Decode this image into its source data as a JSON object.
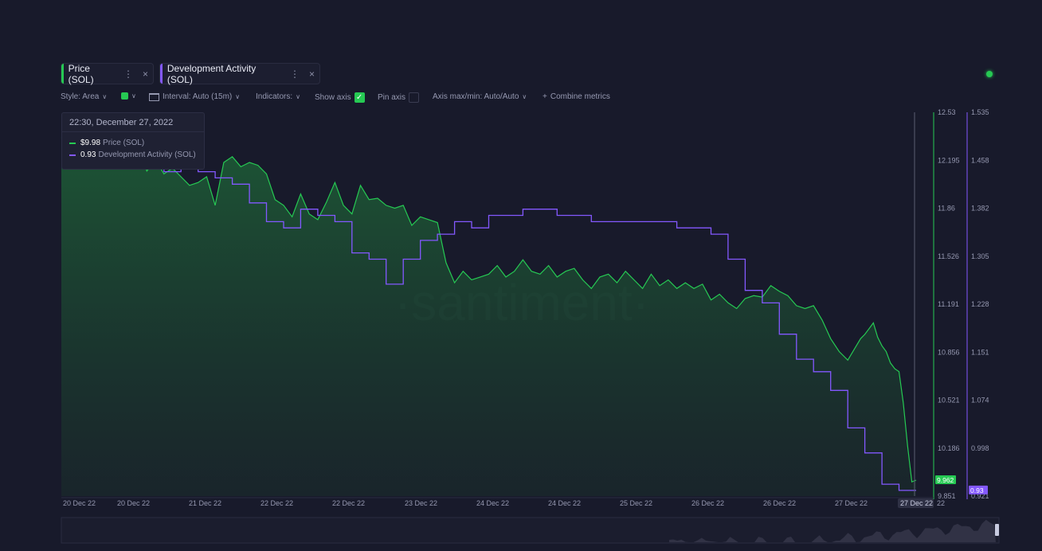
{
  "tabs": [
    {
      "label": "Price (SOL)",
      "color": "#26c953"
    },
    {
      "label": "Development Activity (SOL)",
      "color": "#8358ff"
    }
  ],
  "toolbar": {
    "style": "Style: Area",
    "interval": "Interval: Auto (15m)",
    "indicators": "Indicators:",
    "show_axis": "Show axis",
    "pin_axis": "Pin axis",
    "axis_minmax": "Axis max/min: Auto/Auto",
    "combine": "Combine metrics",
    "plus": "+",
    "check": "✓"
  },
  "tooltip": {
    "date": "22:30, December 27, 2022",
    "price_value": "$9.98",
    "price_name": "Price (SOL)",
    "dev_value": "0.93",
    "dev_name": "Development Activity (SOL)"
  },
  "watermark": "·santiment·",
  "chart_data": {
    "type": "area",
    "x_ticks": [
      "20 Dec 22",
      "20 Dec 22",
      "21 Dec 22",
      "22 Dec 22",
      "22 Dec 22",
      "23 Dec 22",
      "24 Dec 22",
      "24 Dec 22",
      "25 Dec 22",
      "26 Dec 22",
      "26 Dec 22",
      "27 Dec 22",
      "27 Dec 22"
    ],
    "x_tick_last": "22",
    "price_axis": {
      "ticks": [
        "12.53",
        "12.195",
        "11.86",
        "11.526",
        "11.191",
        "10.856",
        "10.521",
        "10.186",
        "9.851"
      ],
      "min": 9.851,
      "max": 12.53,
      "color": "#26c953"
    },
    "dev_axis": {
      "ticks": [
        "1.535",
        "1.458",
        "1.382",
        "1.305",
        "1.228",
        "1.151",
        "1.074",
        "0.998",
        "0.921"
      ],
      "min": 0.921,
      "max": 1.535,
      "color": "#8358ff"
    },
    "current_price": "9.962",
    "current_dev": "0.93",
    "series": [
      {
        "name": "Price (SOL)",
        "x": [
          0,
          0.02,
          0.04,
          0.06,
          0.08,
          0.09,
          0.1,
          0.11,
          0.12,
          0.13,
          0.14,
          0.15,
          0.16,
          0.17,
          0.18,
          0.19,
          0.2,
          0.21,
          0.22,
          0.23,
          0.24,
          0.25,
          0.26,
          0.27,
          0.28,
          0.29,
          0.3,
          0.31,
          0.32,
          0.33,
          0.34,
          0.35,
          0.36,
          0.37,
          0.38,
          0.39,
          0.4,
          0.41,
          0.42,
          0.43,
          0.44,
          0.45,
          0.46,
          0.47,
          0.48,
          0.49,
          0.5,
          0.51,
          0.52,
          0.53,
          0.54,
          0.55,
          0.56,
          0.57,
          0.58,
          0.59,
          0.6,
          0.61,
          0.62,
          0.63,
          0.64,
          0.65,
          0.66,
          0.67,
          0.68,
          0.69,
          0.7,
          0.71,
          0.72,
          0.73,
          0.74,
          0.75,
          0.76,
          0.77,
          0.78,
          0.79,
          0.8,
          0.81,
          0.82,
          0.83,
          0.84,
          0.85,
          0.86,
          0.87,
          0.88,
          0.89,
          0.9,
          0.91,
          0.92,
          0.93,
          0.935,
          0.94,
          0.945,
          0.95,
          0.955,
          0.96,
          0.965,
          0.97,
          0.975,
          0.98,
          0.985,
          0.99,
          0.995,
          1.0
        ],
        "values": [
          12.35,
          12.38,
          12.33,
          12.32,
          12.28,
          12.3,
          12.12,
          12.2,
          12.1,
          12.14,
          12.08,
          12.02,
          12.04,
          12.08,
          11.88,
          12.18,
          12.22,
          12.15,
          12.18,
          12.16,
          12.1,
          11.92,
          11.88,
          11.8,
          11.96,
          11.82,
          11.78,
          11.9,
          12.04,
          11.88,
          11.82,
          12.02,
          11.92,
          11.93,
          11.88,
          11.86,
          11.88,
          11.74,
          11.8,
          11.78,
          11.76,
          11.48,
          11.34,
          11.42,
          11.36,
          11.38,
          11.4,
          11.46,
          11.38,
          11.42,
          11.5,
          11.42,
          11.4,
          11.46,
          11.38,
          11.42,
          11.44,
          11.36,
          11.3,
          11.38,
          11.4,
          11.34,
          11.42,
          11.36,
          11.3,
          11.4,
          11.32,
          11.36,
          11.3,
          11.34,
          11.3,
          11.33,
          11.22,
          11.26,
          11.2,
          11.16,
          11.23,
          11.25,
          11.24,
          11.32,
          11.28,
          11.25,
          11.18,
          11.16,
          11.18,
          11.08,
          10.95,
          10.86,
          10.8,
          10.9,
          10.95,
          10.98,
          11.02,
          11.06,
          10.96,
          10.9,
          10.86,
          10.78,
          10.74,
          10.72,
          10.5,
          10.2,
          9.95,
          9.962
        ]
      },
      {
        "name": "Development Activity (SOL)",
        "x": [
          0,
          0.03,
          0.06,
          0.08,
          0.1,
          0.12,
          0.14,
          0.16,
          0.18,
          0.2,
          0.22,
          0.24,
          0.26,
          0.28,
          0.3,
          0.32,
          0.34,
          0.36,
          0.38,
          0.4,
          0.42,
          0.44,
          0.46,
          0.48,
          0.5,
          0.52,
          0.54,
          0.56,
          0.58,
          0.6,
          0.62,
          0.64,
          0.66,
          0.68,
          0.7,
          0.72,
          0.74,
          0.76,
          0.78,
          0.8,
          0.82,
          0.84,
          0.86,
          0.88,
          0.9,
          0.92,
          0.94,
          0.96,
          0.98,
          1.0
        ],
        "values": [
          1.48,
          1.47,
          1.49,
          1.47,
          1.45,
          1.44,
          1.45,
          1.44,
          1.43,
          1.42,
          1.39,
          1.36,
          1.35,
          1.38,
          1.37,
          1.36,
          1.31,
          1.3,
          1.26,
          1.3,
          1.33,
          1.34,
          1.36,
          1.35,
          1.37,
          1.37,
          1.38,
          1.38,
          1.37,
          1.37,
          1.36,
          1.36,
          1.36,
          1.36,
          1.36,
          1.35,
          1.35,
          1.34,
          1.3,
          1.25,
          1.23,
          1.18,
          1.14,
          1.12,
          1.09,
          1.03,
          0.99,
          0.94,
          0.93,
          0.93
        ]
      }
    ]
  }
}
